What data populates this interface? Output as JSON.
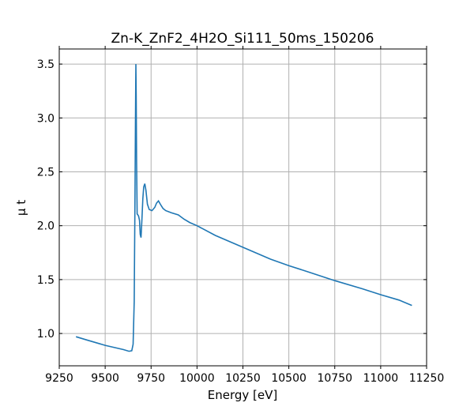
{
  "chart_data": {
    "type": "line",
    "title": "Zn-K_ZnF2_4H2O_Si111_50ms_150206",
    "xlabel": "Energy [eV]",
    "ylabel": "μ t",
    "xlim": [
      9250,
      11250
    ],
    "ylim": [
      0.7,
      3.64
    ],
    "xticks": [
      9250,
      9500,
      9750,
      10000,
      10250,
      10500,
      10750,
      11000,
      11250
    ],
    "yticks": [
      1.0,
      1.5,
      2.0,
      2.5,
      3.0,
      3.5
    ],
    "xtick_labels": [
      "9250",
      "9500",
      "9750",
      "10000",
      "10250",
      "10500",
      "10750",
      "11000",
      "11250"
    ],
    "ytick_labels": [
      "1.0",
      "1.5",
      "2.0",
      "2.5",
      "3.0",
      "3.5"
    ],
    "grid": true,
    "color": "#1f77b4",
    "series": [
      {
        "name": "mu t",
        "x": [
          9341,
          9400,
          9500,
          9600,
          9630,
          9645,
          9652,
          9658,
          9662,
          9665,
          9667,
          9669,
          9671,
          9674,
          9678,
          9682,
          9687,
          9691,
          9695,
          9700,
          9705,
          9710,
          9716,
          9722,
          9730,
          9740,
          9755,
          9770,
          9780,
          9790,
          9800,
          9815,
          9830,
          9860,
          9898,
          9930,
          9960,
          10000,
          10100,
          10250,
          10400,
          10500,
          10600,
          10750,
          10900,
          11000,
          11100,
          11170
        ],
        "y": [
          0.97,
          0.94,
          0.89,
          0.85,
          0.835,
          0.84,
          0.9,
          1.3,
          2.2,
          3.0,
          3.5,
          3.2,
          2.6,
          2.11,
          2.1,
          2.09,
          2.05,
          1.92,
          1.89,
          2.05,
          2.25,
          2.36,
          2.39,
          2.33,
          2.2,
          2.15,
          2.14,
          2.17,
          2.21,
          2.23,
          2.2,
          2.16,
          2.14,
          2.12,
          2.1,
          2.06,
          2.03,
          2.0,
          1.91,
          1.8,
          1.69,
          1.63,
          1.575,
          1.49,
          1.415,
          1.36,
          1.31,
          1.26
        ]
      }
    ]
  }
}
